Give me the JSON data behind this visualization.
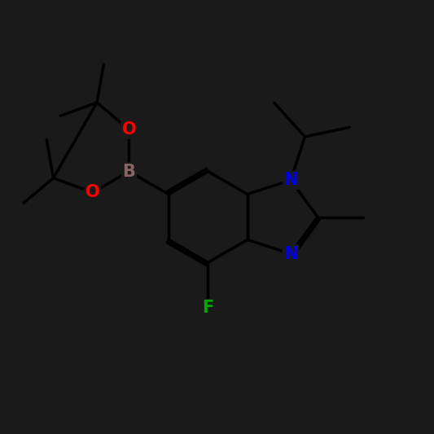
{
  "background_color": "#1a1a1a",
  "bond_color": "#000000",
  "atom_colors": {
    "B": "#8b6464",
    "O": "#ff0000",
    "N": "#0000ee",
    "F": "#00aa00",
    "C": "#000000"
  },
  "line_width": 2.5,
  "font_size": 15
}
